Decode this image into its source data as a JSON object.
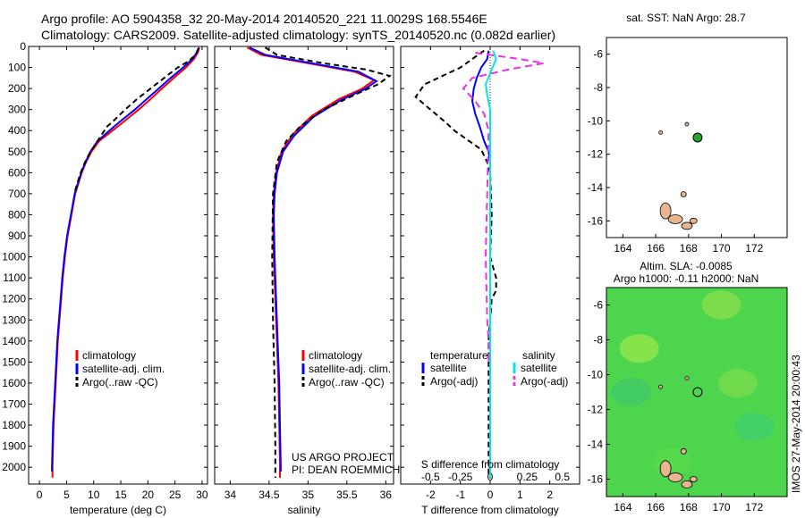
{
  "header": {
    "line1": "Argo profile: AO 5904358_32 20-May-2014 20140520_221 11.0029S 168.5546E",
    "line2": "Climatology: CARS2009. Satellite-adjusted climatology: synTS_20140520.nc (0.082d earlier)"
  },
  "side_label": "IMOS 27-May-2014 20:00:43",
  "project_lines": [
    "US ARGO PROJECT",
    "PI: DEAN ROEMMICH"
  ],
  "colors": {
    "climatology": "#ff0000",
    "satellite": "#0000ff",
    "argo": "#000000",
    "sat_diff": "#00e5ee",
    "argo_diff": "#e633e6",
    "map_land": "#e8b58f",
    "map_green": "#4dd64d",
    "float_marker": "#2ea02e"
  },
  "chart_data": [
    {
      "type": "line",
      "name": "temperature-profile",
      "xlabel": "temperature (deg C)",
      "ylabel": "",
      "xlim": [
        -2,
        31
      ],
      "ylim": [
        2080,
        0
      ],
      "xticks": [
        0,
        5,
        10,
        15,
        20,
        25,
        30
      ],
      "yticks": [
        0,
        100,
        200,
        300,
        400,
        500,
        600,
        700,
        800,
        900,
        1000,
        1100,
        1200,
        1300,
        1400,
        1500,
        1600,
        1700,
        1800,
        1900,
        2000
      ],
      "legend": [
        "climatology",
        "satellite-adj. clim.",
        "Argo(..raw -QC)"
      ],
      "series": [
        {
          "name": "climatology",
          "color": "#ff0000",
          "dash": "",
          "points": [
            [
              29.5,
              5
            ],
            [
              29.2,
              30
            ],
            [
              28.5,
              60
            ],
            [
              27.0,
              100
            ],
            [
              24.8,
              150
            ],
            [
              22.6,
              200
            ],
            [
              20.5,
              250
            ],
            [
              18.3,
              300
            ],
            [
              15.9,
              350
            ],
            [
              13.5,
              400
            ],
            [
              11.0,
              450
            ],
            [
              9.6,
              500
            ],
            [
              8.6,
              550
            ],
            [
              7.8,
              600
            ],
            [
              7.2,
              650
            ],
            [
              6.6,
              700
            ],
            [
              5.9,
              800
            ],
            [
              5.2,
              900
            ],
            [
              4.7,
              1000
            ],
            [
              4.3,
              1100
            ],
            [
              4.0,
              1200
            ],
            [
              3.7,
              1300
            ],
            [
              3.4,
              1400
            ],
            [
              3.2,
              1500
            ],
            [
              3.0,
              1600
            ],
            [
              2.8,
              1700
            ],
            [
              2.6,
              1800
            ],
            [
              2.5,
              1900
            ],
            [
              2.4,
              2000
            ],
            [
              2.4,
              2050
            ]
          ]
        },
        {
          "name": "satellite",
          "color": "#0000ff",
          "dash": "",
          "points": [
            [
              29.4,
              5
            ],
            [
              29.0,
              30
            ],
            [
              28.2,
              60
            ],
            [
              26.5,
              100
            ],
            [
              24.2,
              150
            ],
            [
              22.0,
              200
            ],
            [
              19.8,
              250
            ],
            [
              17.6,
              300
            ],
            [
              15.2,
              350
            ],
            [
              12.9,
              400
            ],
            [
              10.7,
              450
            ],
            [
              9.4,
              500
            ],
            [
              8.5,
              550
            ],
            [
              7.7,
              600
            ],
            [
              7.1,
              650
            ],
            [
              6.5,
              700
            ],
            [
              5.8,
              800
            ],
            [
              5.1,
              900
            ],
            [
              4.6,
              1000
            ],
            [
              4.2,
              1100
            ],
            [
              3.9,
              1200
            ],
            [
              3.6,
              1300
            ],
            [
              3.3,
              1400
            ],
            [
              3.1,
              1500
            ],
            [
              2.9,
              1600
            ],
            [
              2.7,
              1700
            ],
            [
              2.5,
              1800
            ],
            [
              2.4,
              1900
            ],
            [
              2.3,
              2000
            ],
            [
              2.3,
              2020
            ]
          ]
        },
        {
          "name": "Argo",
          "color": "#000000",
          "dash": "6,4",
          "points": [
            [
              29.3,
              10
            ],
            [
              28.8,
              40
            ],
            [
              27.5,
              70
            ],
            [
              25.5,
              100
            ],
            [
              23.0,
              150
            ],
            [
              20.5,
              200
            ],
            [
              18.0,
              250
            ],
            [
              15.8,
              300
            ],
            [
              13.8,
              350
            ],
            [
              12.5,
              380
            ],
            [
              11.2,
              430
            ],
            [
              10.2,
              470
            ],
            [
              9.2,
              510
            ],
            [
              8.4,
              550
            ],
            [
              7.6,
              600
            ],
            [
              7.0,
              650
            ],
            [
              6.4,
              700
            ]
          ]
        }
      ]
    },
    {
      "type": "line",
      "name": "salinity-profile",
      "xlabel": "salinity",
      "ylabel": "",
      "xlim": [
        33.8,
        36.1
      ],
      "ylim": [
        2080,
        0
      ],
      "xticks": [
        34,
        34.5,
        35,
        35.5,
        36
      ],
      "legend": [
        "climatology",
        "satellite-adj. clim.",
        "Argo(..raw -QC)"
      ],
      "series": [
        {
          "name": "climatology",
          "color": "#ff0000",
          "dash": "",
          "points": [
            [
              34.22,
              5
            ],
            [
              34.4,
              40
            ],
            [
              35.0,
              80
            ],
            [
              35.6,
              120
            ],
            [
              35.85,
              160
            ],
            [
              35.7,
              200
            ],
            [
              35.4,
              250
            ],
            [
              35.05,
              330
            ],
            [
              34.8,
              420
            ],
            [
              34.66,
              500
            ],
            [
              34.59,
              600
            ],
            [
              34.56,
              700
            ],
            [
              34.55,
              800
            ],
            [
              34.56,
              1000
            ],
            [
              34.58,
              1200
            ],
            [
              34.6,
              1400
            ],
            [
              34.62,
              1600
            ],
            [
              34.63,
              1800
            ],
            [
              34.64,
              2000
            ],
            [
              34.64,
              2050
            ]
          ]
        },
        {
          "name": "satellite",
          "color": "#0000ff",
          "dash": "",
          "points": [
            [
              34.25,
              5
            ],
            [
              34.45,
              40
            ],
            [
              35.05,
              80
            ],
            [
              35.65,
              120
            ],
            [
              35.88,
              165
            ],
            [
              35.72,
              205
            ],
            [
              35.42,
              255
            ],
            [
              35.07,
              335
            ],
            [
              34.82,
              425
            ],
            [
              34.68,
              500
            ],
            [
              34.6,
              600
            ],
            [
              34.57,
              700
            ],
            [
              34.56,
              800
            ],
            [
              34.57,
              1000
            ],
            [
              34.59,
              1200
            ],
            [
              34.61,
              1400
            ],
            [
              34.63,
              1600
            ],
            [
              34.64,
              1800
            ],
            [
              34.65,
              2000
            ],
            [
              34.65,
              2020
            ]
          ]
        },
        {
          "name": "Argo",
          "color": "#000000",
          "dash": "6,4",
          "points": [
            [
              34.45,
              5
            ],
            [
              34.6,
              40
            ],
            [
              35.2,
              80
            ],
            [
              35.75,
              110
            ],
            [
              36.05,
              140
            ],
            [
              35.9,
              180
            ],
            [
              35.6,
              230
            ],
            [
              35.2,
              300
            ],
            [
              34.9,
              380
            ],
            [
              34.72,
              450
            ],
            [
              34.6,
              550
            ],
            [
              34.55,
              700
            ],
            [
              34.54,
              1000
            ],
            [
              34.55,
              1300
            ],
            [
              34.57,
              1600
            ],
            [
              34.58,
              1900
            ],
            [
              34.58,
              2050
            ]
          ]
        }
      ]
    },
    {
      "type": "line",
      "name": "difference-profile",
      "xlabel": "T difference from climatology",
      "xlabel2": "S difference from climatology",
      "xlim": [
        -3,
        3
      ],
      "ylim": [
        2080,
        0
      ],
      "xticks": [
        -2,
        -1,
        0,
        1,
        2
      ],
      "xticks_s": [
        -0.5,
        -0.25,
        0,
        0.25,
        0.5
      ],
      "legend_headers": [
        "temperature",
        "salinity"
      ],
      "legend": [
        "satellite",
        "Argo(-adj)",
        "satellite",
        "Argo(-adj)"
      ],
      "series": [
        {
          "name": "T satellite",
          "color": "#0000ff",
          "dash": "",
          "points": [
            [
              -0.05,
              20
            ],
            [
              -0.1,
              60
            ],
            [
              -0.3,
              100
            ],
            [
              -0.45,
              150
            ],
            [
              -0.55,
              200
            ],
            [
              -0.6,
              260
            ],
            [
              -0.5,
              320
            ],
            [
              -0.35,
              380
            ],
            [
              -0.2,
              450
            ],
            [
              -0.05,
              500
            ],
            [
              0,
              550
            ],
            [
              0,
              2050
            ]
          ]
        },
        {
          "name": "T Argo",
          "color": "#000000",
          "dash": "6,4",
          "points": [
            [
              -0.2,
              20
            ],
            [
              -0.6,
              60
            ],
            [
              -1.0,
              100
            ],
            [
              -1.6,
              140
            ],
            [
              -2.2,
              180
            ],
            [
              -2.5,
              240
            ],
            [
              -2.0,
              300
            ],
            [
              -1.5,
              360
            ],
            [
              -1.2,
              400
            ],
            [
              -0.8,
              440
            ],
            [
              -0.3,
              490
            ],
            [
              -0.1,
              550
            ],
            [
              0,
              600
            ],
            [
              0.05,
              800
            ],
            [
              0,
              1000
            ],
            [
              0.1,
              1050
            ],
            [
              0.2,
              1100
            ],
            [
              0.2,
              1160
            ],
            [
              0.05,
              1200
            ],
            [
              -0.05,
              1400
            ],
            [
              -0.05,
              2050
            ]
          ]
        },
        {
          "name": "S satellite",
          "color": "#00e5ee",
          "dash": "",
          "points": [
            [
              0.1,
              20
            ],
            [
              0.2,
              60
            ],
            [
              0.05,
              110
            ],
            [
              -0.15,
              180
            ],
            [
              -0.1,
              230
            ],
            [
              0.0,
              300
            ],
            [
              0.0,
              2050
            ]
          ]
        },
        {
          "name": "S Argo",
          "color": "#e633e6",
          "dash": "8,5",
          "points": [
            [
              -0.5,
              30
            ],
            [
              1.0,
              60
            ],
            [
              1.8,
              80
            ],
            [
              0.6,
              110
            ],
            [
              -0.6,
              150
            ],
            [
              -0.9,
              200
            ],
            [
              -0.5,
              260
            ],
            [
              -0.2,
              320
            ],
            [
              -0.05,
              400
            ],
            [
              -0.1,
              700
            ],
            [
              -0.15,
              1000
            ],
            [
              -0.1,
              1300
            ],
            [
              -0.05,
              1400
            ],
            [
              -0.05,
              1500
            ]
          ]
        }
      ]
    },
    {
      "type": "scatter",
      "name": "sst-map",
      "title": "sat. SST: NaN Argo: 28.7",
      "xlim": [
        163,
        174
      ],
      "ylim": [
        -17,
        -5
      ],
      "xticks": [
        164,
        166,
        168,
        170,
        172
      ],
      "yticks": [
        -6,
        -8,
        -10,
        -12,
        -14,
        -16
      ],
      "float_position": [
        168.55,
        -11.0
      ]
    },
    {
      "type": "heatmap",
      "name": "sla-map",
      "title": "Altim. SLA: -0.0085",
      "title2": "Argo h1000: -0.11 h2000: NaN",
      "xlim": [
        163,
        174
      ],
      "ylim": [
        -17,
        -5
      ],
      "xticks": [
        164,
        166,
        168,
        170,
        172
      ],
      "yticks": [
        -6,
        -8,
        -10,
        -12,
        -14,
        -16
      ],
      "float_position": [
        168.55,
        -11.0
      ]
    }
  ]
}
